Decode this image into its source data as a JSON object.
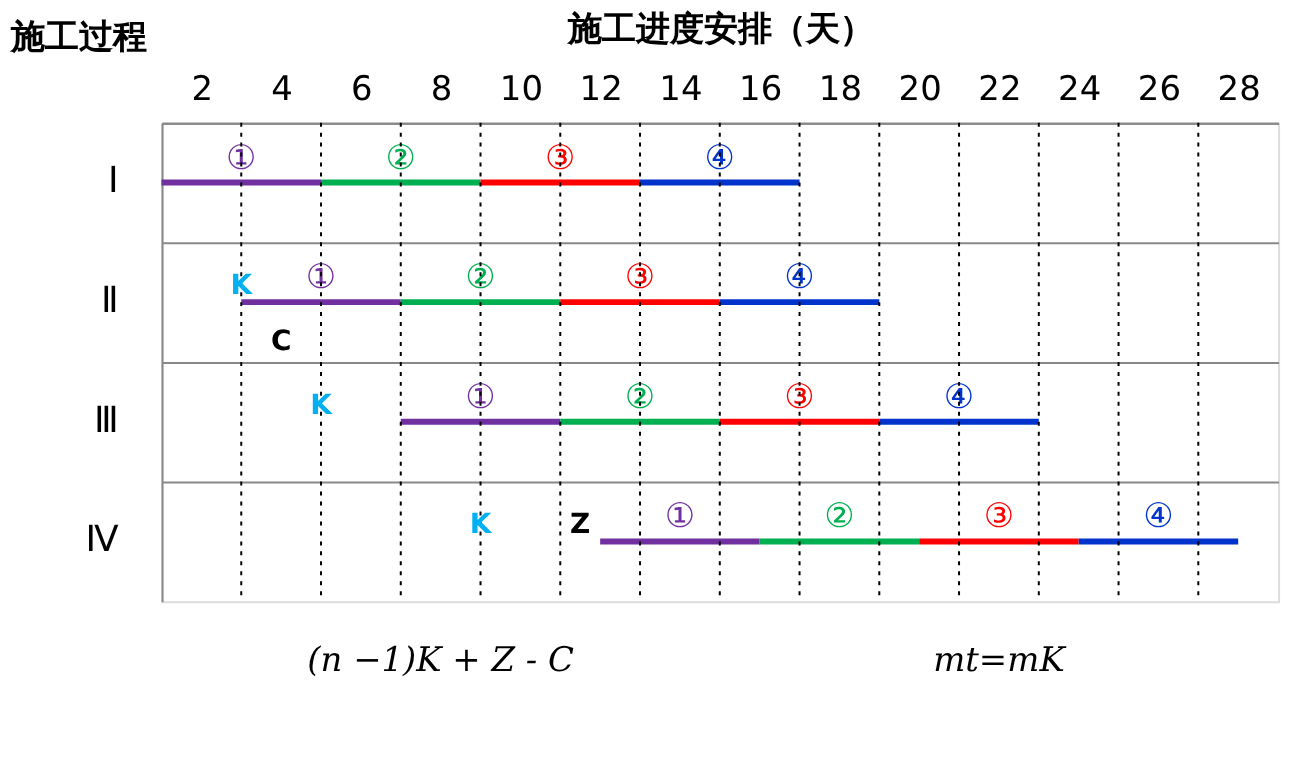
{
  "chart_data": {
    "type": "bar",
    "orientation": "horizontal",
    "xlabel": "施工进度安排（天）",
    "ylabel": "施工过程",
    "categories": [
      "Ⅰ",
      "Ⅱ",
      "Ⅲ",
      "Ⅳ"
    ],
    "series": [
      {
        "name": "①",
        "color": "#7030a0",
        "base": [
          1,
          3,
          7,
          12
        ],
        "values": [
          4,
          4,
          4,
          4
        ]
      },
      {
        "name": "②",
        "color": "#00b050",
        "base": [
          5,
          7,
          11,
          16
        ],
        "values": [
          4,
          4,
          4,
          4
        ]
      },
      {
        "name": "③",
        "color": "#ff0000",
        "base": [
          9,
          11,
          15,
          20
        ],
        "values": [
          4,
          4,
          4,
          4
        ]
      },
      {
        "name": "④",
        "color": "#0033cc",
        "base": [
          13,
          15,
          19,
          24
        ],
        "values": [
          4,
          4,
          4,
          4
        ]
      }
    ],
    "xlim": [
      1,
      29
    ],
    "xticks": [
      2,
      4,
      6,
      8,
      10,
      12,
      14,
      16,
      18,
      20,
      22,
      24,
      26,
      28
    ],
    "grid": true,
    "legend": false,
    "annotations": [
      "K",
      "C",
      "K",
      "K",
      "Z",
      "(n −1)K + Z - C",
      "mt=mK"
    ]
  }
}
